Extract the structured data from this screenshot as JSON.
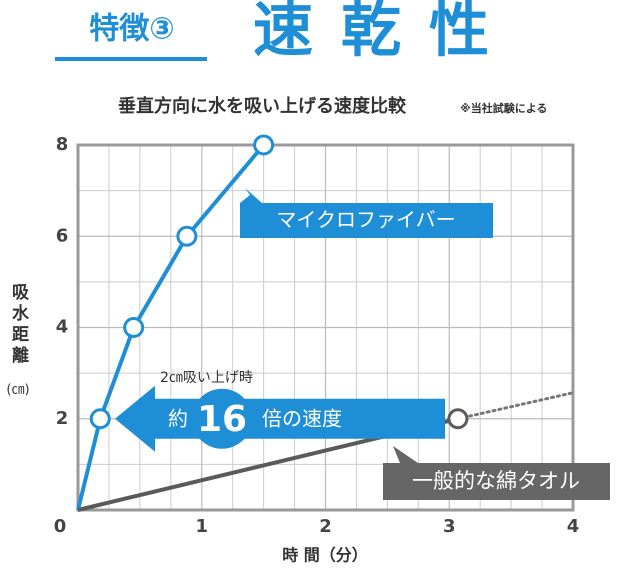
{
  "header": {
    "label": "特徴③",
    "title": "速乾性"
  },
  "chart_data": {
    "type": "line",
    "title": "垂直方向に水を吸い上げる速度比較",
    "note": "※当社試験による",
    "y_label": "吸水距離",
    "y_unit": "(㎝)",
    "x_label": "時 間（分）",
    "xlim": [
      0,
      4
    ],
    "xticks": [
      0,
      1,
      2,
      3,
      4
    ],
    "ylim": [
      0,
      8
    ],
    "yticks": [
      0,
      2,
      4,
      6,
      8
    ],
    "grid": true,
    "grid_minor_divisions": {
      "x": 4,
      "y": 2
    },
    "series": [
      {
        "name": "マイクロファイバー",
        "color": "#1e8fd6",
        "x": [
          0,
          0.18,
          0.45,
          0.88,
          1.5
        ],
        "values": [
          0,
          2,
          4,
          6,
          8
        ]
      },
      {
        "name": "一般的な綿タオル",
        "color": "#5a5a5a",
        "x": [
          0,
          3.07
        ],
        "values": [
          0,
          2
        ]
      }
    ],
    "extension": {
      "x": [
        3.07,
        4
      ],
      "values": [
        2,
        2.57
      ],
      "color": "#777777",
      "style": "dotted"
    },
    "annotation": {
      "caption": "2㎝吸い上げ時",
      "prefix": "約",
      "ratio": 16,
      "suffix": "倍の速度"
    }
  }
}
